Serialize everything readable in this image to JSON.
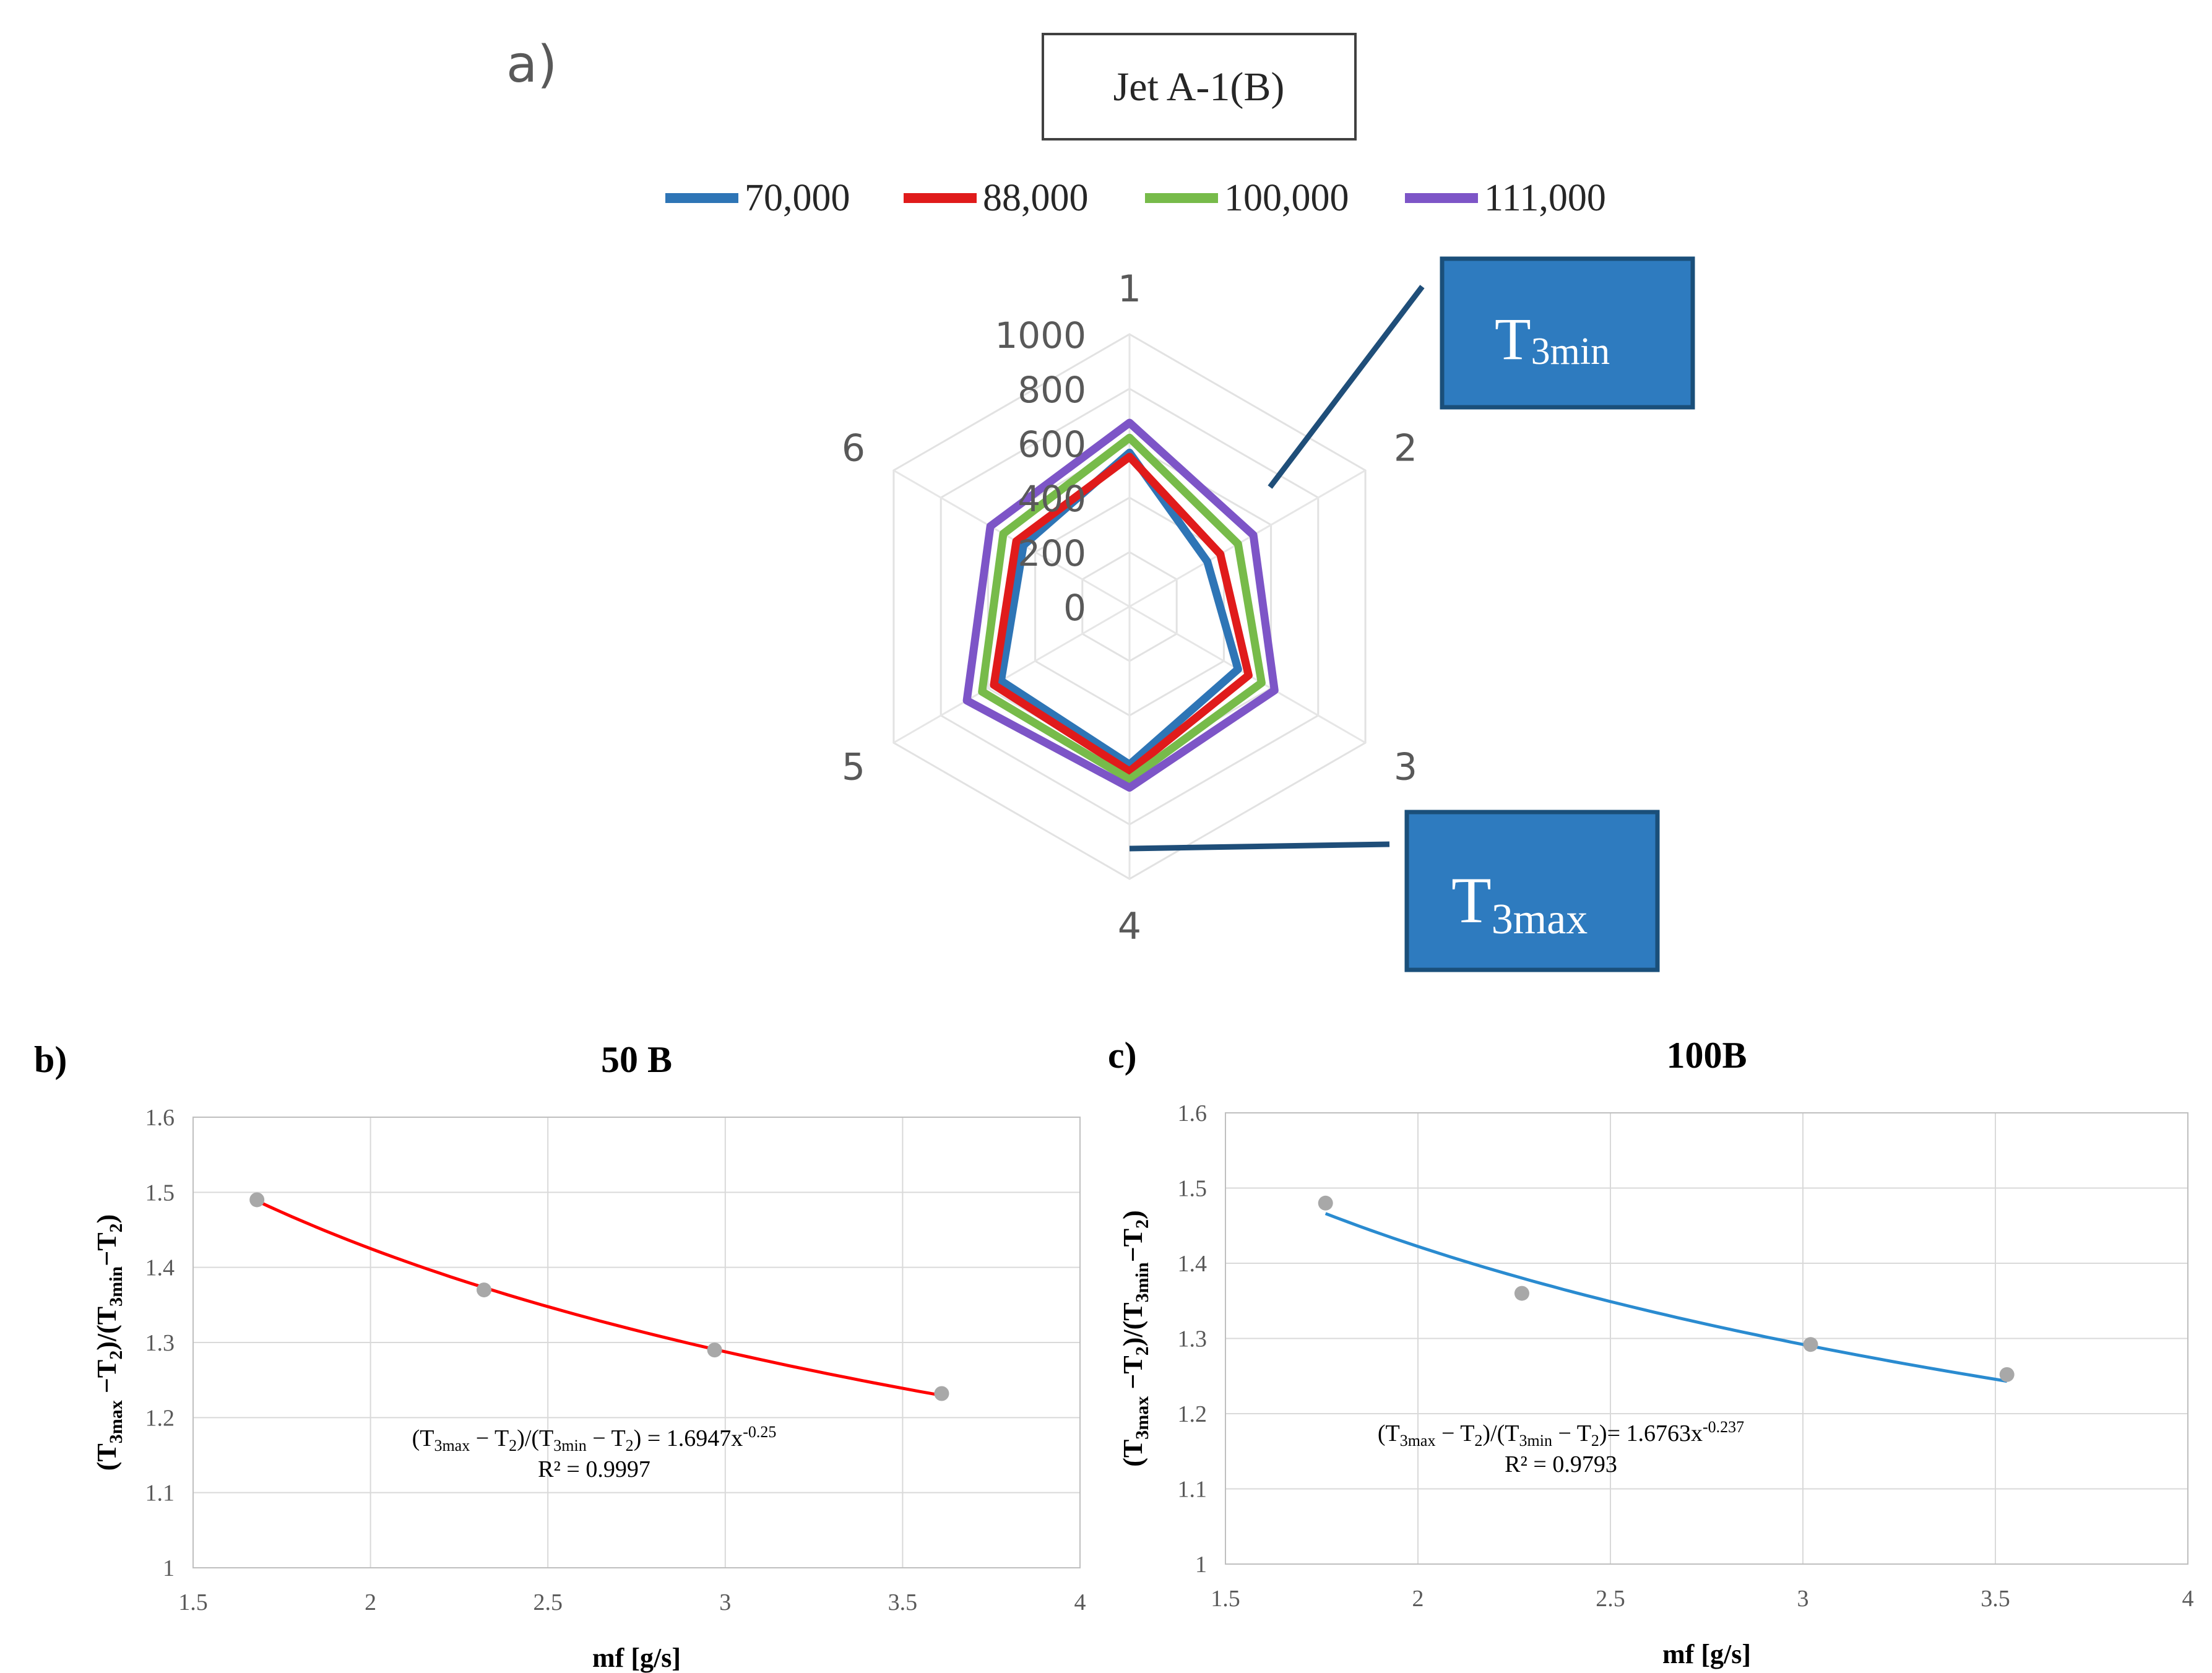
{
  "panel_a": {
    "label": "a)",
    "title": "Jet A-1(B)",
    "callout_min": {
      "base": "T",
      "sub": "3min"
    },
    "callout_max": {
      "base": "T",
      "sub": "3max"
    }
  },
  "panel_b": {
    "label": "b)"
  },
  "panel_c": {
    "label": "c)"
  },
  "colors": {
    "s70000": "#2e75b6",
    "s88000": "#e01b1b",
    "s100000": "#77bb4a",
    "s111000": "#7d55c7",
    "callout_fill": "#2e7bbf",
    "callout_border": "#1a4f7a",
    "trend_b": "#ff0000",
    "trend_c": "#2a8bd0",
    "marker": "#a8a8a8"
  },
  "chart_data": [
    {
      "id": "radar",
      "type": "radar",
      "title": "Jet A-1(B)",
      "axes": [
        "1",
        "2",
        "3",
        "4",
        "5",
        "6"
      ],
      "rlim": [
        0,
        1000
      ],
      "ticks": [
        0,
        200,
        400,
        600,
        800,
        1000
      ],
      "tick_labels": [
        "0",
        "200",
        "400",
        "600",
        "800",
        "1000"
      ],
      "legend_position": "top",
      "series": [
        {
          "name": "70,000",
          "color": "#2e75b6",
          "values": [
            565,
            330,
            460,
            580,
            545,
            450
          ]
        },
        {
          "name": "88,000",
          "color": "#e01b1b",
          "values": [
            550,
            385,
            505,
            605,
            575,
            480
          ]
        },
        {
          "name": "100,000",
          "color": "#77bb4a",
          "values": [
            620,
            460,
            560,
            635,
            625,
            535
          ]
        },
        {
          "name": "111,000",
          "color": "#7d55c7",
          "values": [
            675,
            525,
            615,
            665,
            690,
            590
          ]
        }
      ]
    },
    {
      "id": "b",
      "type": "scatter",
      "title": "50 B",
      "xlabel": "mf [g/s]",
      "ylabel": "(T3max −T2)/(T3min−T2)",
      "xlim": [
        1.5,
        4
      ],
      "ylim": [
        1,
        1.6
      ],
      "xticks": [
        "1.5",
        "2",
        "2.5",
        "3",
        "3.5",
        "4"
      ],
      "yticks": [
        "1",
        "1.1",
        "1.2",
        "1.3",
        "1.4",
        "1.5",
        "1.6"
      ],
      "x": [
        1.68,
        2.32,
        2.97,
        3.61
      ],
      "y": [
        1.49,
        1.37,
        1.29,
        1.232
      ],
      "trendline": {
        "type": "power",
        "a": 1.6947,
        "b": -0.25,
        "x_range": [
          1.68,
          3.61
        ],
        "color": "#ff0000"
      },
      "equation": {
        "lhs": "(T3max − T2)/(T3min − T2) = 1.6947x-0.25",
        "r2": "R² = 0.9997"
      }
    },
    {
      "id": "c",
      "type": "scatter",
      "title": "100B",
      "xlabel": "mf [g/s]",
      "ylabel": "(T3max −T2)/(T3min−T2)",
      "xlim": [
        1.5,
        4
      ],
      "ylim": [
        1,
        1.6
      ],
      "xticks": [
        "1.5",
        "2",
        "2.5",
        "3",
        "3.5",
        "4"
      ],
      "yticks": [
        "1",
        "1.1",
        "1.2",
        "1.3",
        "1.4",
        "1.5",
        "1.6"
      ],
      "x": [
        1.76,
        2.27,
        3.02,
        3.53
      ],
      "y": [
        1.48,
        1.36,
        1.292,
        1.252
      ],
      "trendline": {
        "type": "power",
        "a": 1.6763,
        "b": -0.237,
        "x_range": [
          1.76,
          3.53
        ],
        "color": "#2a8bd0"
      },
      "equation": {
        "lhs": "(T3max − T2)/(T3min − T2)= 1.6763x-0.237",
        "r2": "R² = 0.9793"
      }
    }
  ]
}
